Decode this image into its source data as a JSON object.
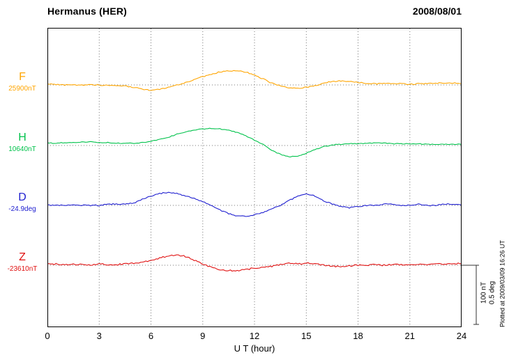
{
  "header": {
    "title": "Hermanus (HER)",
    "date": "2008/08/01"
  },
  "axis": {
    "xlabel": "U T (hour)",
    "x_ticks": [
      "0",
      "3",
      "6",
      "9",
      "12",
      "15",
      "18",
      "21",
      "24"
    ]
  },
  "scale_bar": {
    "nt": "100 nT",
    "deg": "0.5 deg"
  },
  "side_note": "Plotted at 2009/03/09 16:26 UT",
  "chart_data": {
    "type": "line",
    "title": "Hermanus (HER) magnetogram",
    "date": "2008/08/01",
    "xlabel": "U T (hour)",
    "x_range": [
      0,
      24
    ],
    "x_step_hours": 0.5,
    "grid": "dotted vertical every 3 h, dotted horizontal baseline per trace",
    "scale": {
      "nT_per_division": 100,
      "deg_per_division": 0.5
    },
    "series": [
      {
        "name": "F",
        "base_label": "25900nT",
        "unit": "nT",
        "color": "#FFA500",
        "offsets": [
          1,
          1,
          0,
          0,
          0,
          0,
          0,
          -1,
          -1,
          -2,
          -4,
          -7,
          -9,
          -7,
          -4,
          0,
          4,
          9,
          14,
          18,
          22,
          24,
          24,
          22,
          17,
          10,
          3,
          -2,
          -5,
          -6,
          -4,
          -1,
          3,
          6,
          7,
          6,
          4,
          3,
          2,
          2,
          2,
          2,
          1,
          2,
          2,
          3,
          3,
          3,
          3
        ]
      },
      {
        "name": "H",
        "base_label": "10640nT",
        "unit": "nT",
        "color": "#00C24B",
        "offsets": [
          4,
          4,
          5,
          5,
          6,
          6,
          5,
          5,
          4,
          4,
          4,
          5,
          7,
          10,
          14,
          19,
          23,
          26,
          28,
          29,
          28,
          26,
          22,
          16,
          9,
          2,
          -8,
          -15,
          -19,
          -18,
          -13,
          -7,
          -2,
          1,
          2,
          3,
          3,
          4,
          4,
          4,
          3,
          3,
          3,
          3,
          2,
          2,
          2,
          2,
          2
        ]
      },
      {
        "name": "D",
        "base_label": "-24.9deg",
        "unit": "deg",
        "color": "#2020D0",
        "offsets": [
          0,
          0,
          0,
          0,
          0,
          0,
          0,
          0.01,
          0.01,
          0.01,
          0.02,
          0.05,
          0.08,
          0.1,
          0.11,
          0.1,
          0.08,
          0.06,
          0.03,
          0,
          -0.04,
          -0.07,
          -0.09,
          -0.09,
          -0.08,
          -0.06,
          -0.03,
          0,
          0.04,
          0.08,
          0.1,
          0.08,
          0.04,
          0.01,
          -0.01,
          -0.02,
          -0.01,
          0,
          0,
          0.01,
          0.01,
          0,
          0,
          0.01,
          0,
          0,
          0.01,
          0.01,
          0
        ]
      },
      {
        "name": "Z",
        "base_label": "-23610nT",
        "unit": "nT",
        "color": "#E01010",
        "offsets": [
          2,
          2,
          1,
          2,
          1,
          1,
          2,
          1,
          1,
          2,
          3,
          5,
          8,
          12,
          16,
          18,
          15,
          9,
          2,
          -4,
          -8,
          -9,
          -9,
          -7,
          -5,
          -4,
          -2,
          1,
          3,
          2,
          4,
          3,
          0,
          -2,
          -2,
          -1,
          0,
          0,
          1,
          0,
          1,
          1,
          0,
          1,
          1,
          2,
          2,
          2,
          3
        ]
      }
    ]
  }
}
